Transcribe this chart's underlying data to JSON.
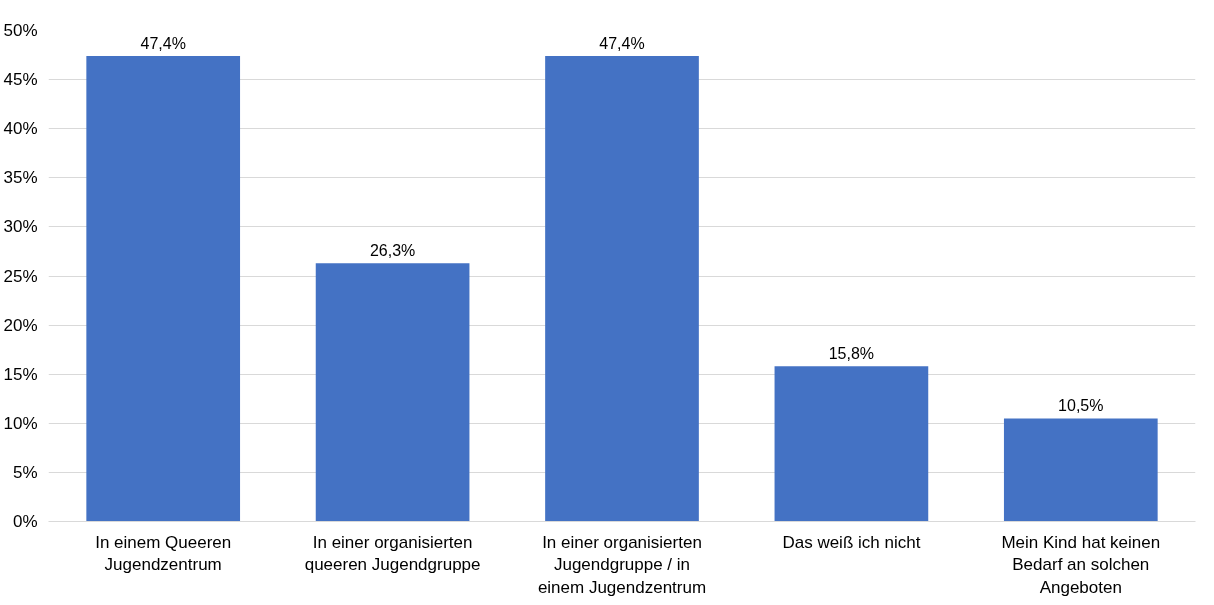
{
  "chart_data": {
    "type": "bar",
    "categories": [
      "In einem Queeren Jugendzentrum",
      "In einer organisierten queeren Jugendgruppe",
      "In einer organisierten Jugendgruppe / in einem Jugendzentrum",
      "Das weiß ich nicht",
      "Mein Kind hat keinen Bedarf an solchen Angeboten"
    ],
    "values": [
      47.4,
      26.3,
      47.4,
      15.8,
      10.5
    ],
    "value_labels": [
      "47,4%",
      "26,3%",
      "47,4%",
      "15,8%",
      "10,5%"
    ],
    "color": "#4472c4",
    "ylim": [
      0,
      50
    ],
    "yticks": [
      {
        "value": 0,
        "label": "0%"
      },
      {
        "value": 5,
        "label": "5%"
      },
      {
        "value": 10,
        "label": "10%"
      },
      {
        "value": 15,
        "label": "15%"
      },
      {
        "value": 20,
        "label": "20%"
      },
      {
        "value": 25,
        "label": "25%"
      },
      {
        "value": 30,
        "label": "30%"
      },
      {
        "value": 35,
        "label": "35%"
      },
      {
        "value": 40,
        "label": "40%"
      },
      {
        "value": 45,
        "label": "45%"
      },
      {
        "value": 50,
        "label": "50%"
      }
    ],
    "grid": "y"
  }
}
